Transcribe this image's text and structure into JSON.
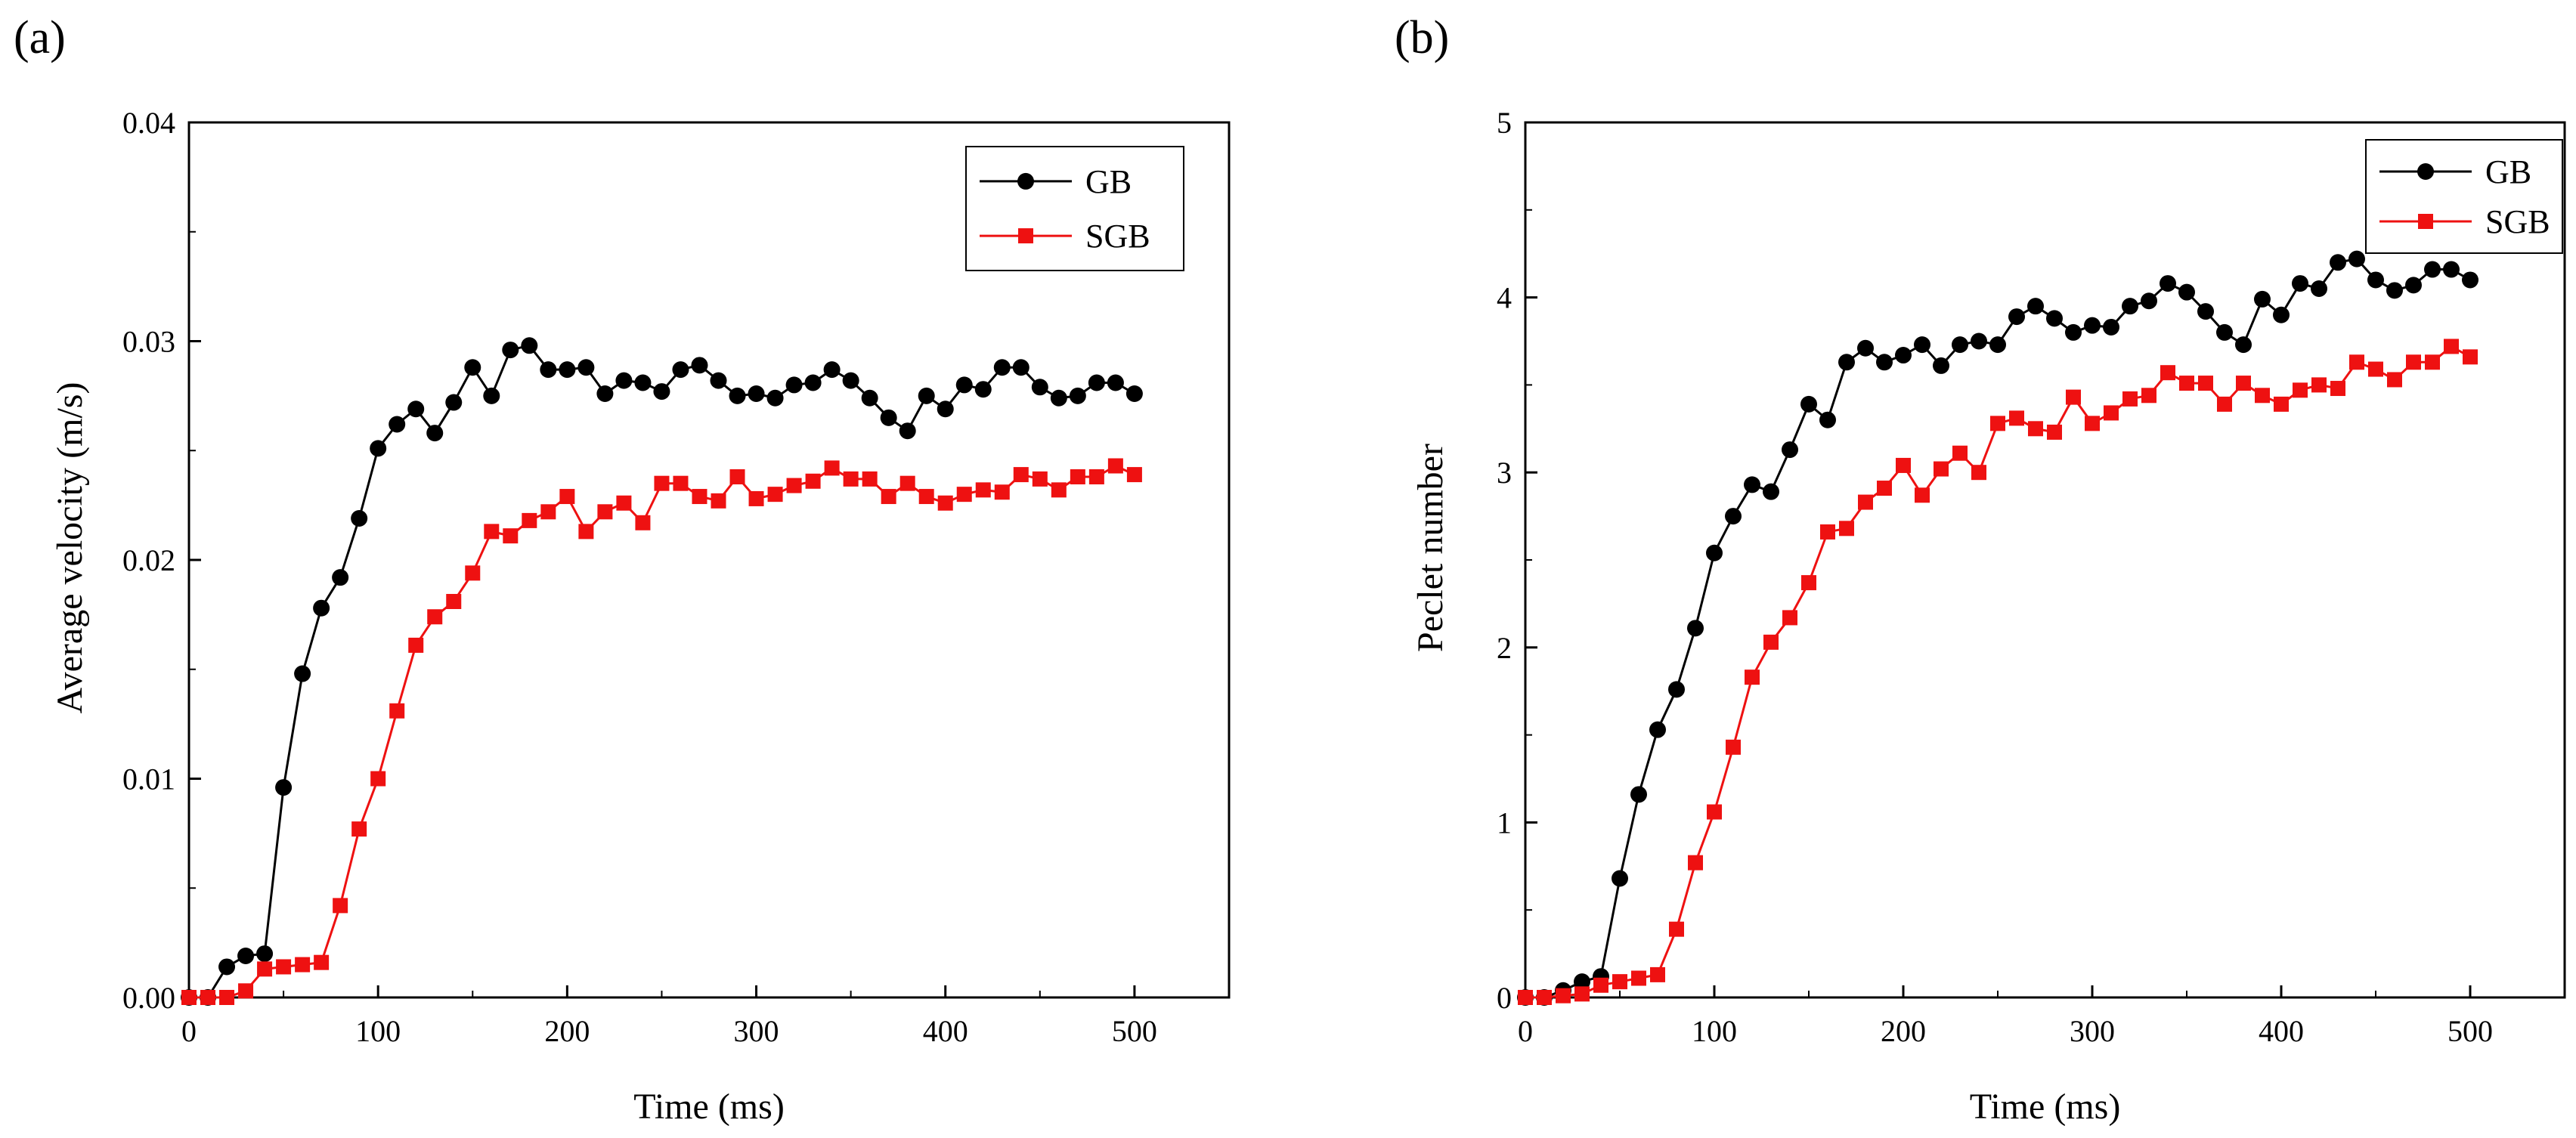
{
  "chart_data": [
    {
      "panel_label": "(a)",
      "type": "line",
      "title": "",
      "xlabel": "Time (ms)",
      "ylabel": "Average velocity (m/s)",
      "xlim": [
        0,
        550
      ],
      "ylim": [
        0,
        0.04
      ],
      "xticks": [
        0,
        100,
        200,
        300,
        400,
        500
      ],
      "xtick_labels": [
        "0",
        "100",
        "200",
        "300",
        "400",
        "500"
      ],
      "yticks": [
        0,
        0.01,
        0.02,
        0.03,
        0.04
      ],
      "ytick_labels": [
        "0.00",
        "0.01",
        "0.02",
        "0.03",
        "0.04"
      ],
      "legend_position": "top-right",
      "x": [
        0,
        10,
        20,
        30,
        40,
        50,
        60,
        70,
        80,
        90,
        100,
        110,
        120,
        130,
        140,
        150,
        160,
        170,
        180,
        190,
        200,
        210,
        220,
        230,
        240,
        250,
        260,
        270,
        280,
        290,
        300,
        310,
        320,
        330,
        340,
        350,
        360,
        370,
        380,
        390,
        400,
        410,
        420,
        430,
        440,
        450,
        460,
        470,
        480,
        490,
        500
      ],
      "series": [
        {
          "name": "GB",
          "color": "#000000",
          "marker": "circle",
          "values": [
            0,
            0,
            0.0014,
            0.0019,
            0.002,
            0.0096,
            0.0148,
            0.0178,
            0.0192,
            0.0219,
            0.0251,
            0.0262,
            0.0269,
            0.0258,
            0.0272,
            0.0288,
            0.0275,
            0.0296,
            0.0298,
            0.0287,
            0.0287,
            0.0288,
            0.0276,
            0.0282,
            0.0281,
            0.0277,
            0.0287,
            0.0289,
            0.0282,
            0.0275,
            0.0276,
            0.0274,
            0.028,
            0.0281,
            0.0287,
            0.0282,
            0.0274,
            0.0265,
            0.0259,
            0.0275,
            0.0269,
            0.028,
            0.0278,
            0.0288,
            0.0288,
            0.0279,
            0.0274,
            0.0275,
            0.0281,
            0.0281,
            0.0276
          ]
        },
        {
          "name": "SGB",
          "color": "#ee1111",
          "marker": "square",
          "values": [
            0,
            0,
            0,
            0.0003,
            0.0013,
            0.0014,
            0.0015,
            0.0016,
            0.0042,
            0.0077,
            0.01,
            0.0131,
            0.0161,
            0.0174,
            0.0181,
            0.0194,
            0.0213,
            0.0211,
            0.0218,
            0.0222,
            0.0229,
            0.0213,
            0.0222,
            0.0226,
            0.0217,
            0.0235,
            0.0235,
            0.0229,
            0.0227,
            0.0238,
            0.0228,
            0.023,
            0.0234,
            0.0236,
            0.0242,
            0.0237,
            0.0237,
            0.0229,
            0.0235,
            0.0229,
            0.0226,
            0.023,
            0.0232,
            0.0231,
            0.0239,
            0.0237,
            0.0232,
            0.0238,
            0.0238,
            0.0243,
            0.0239
          ]
        }
      ]
    },
    {
      "panel_label": "(b)",
      "type": "line",
      "title": "",
      "xlabel": "Time (ms)",
      "ylabel": "Peclet number",
      "xlim": [
        0,
        550
      ],
      "ylim": [
        0,
        5
      ],
      "xticks": [
        0,
        100,
        200,
        300,
        400,
        500
      ],
      "xtick_labels": [
        "0",
        "100",
        "200",
        "300",
        "400",
        "500"
      ],
      "yticks": [
        0,
        1,
        2,
        3,
        4,
        5
      ],
      "ytick_labels": [
        "0",
        "1",
        "2",
        "3",
        "4",
        "5"
      ],
      "legend_position": "top-right",
      "x": [
        0,
        10,
        20,
        30,
        40,
        50,
        60,
        70,
        80,
        90,
        100,
        110,
        120,
        130,
        140,
        150,
        160,
        170,
        180,
        190,
        200,
        210,
        220,
        230,
        240,
        250,
        260,
        270,
        280,
        290,
        300,
        310,
        320,
        330,
        340,
        350,
        360,
        370,
        380,
        390,
        400,
        410,
        420,
        430,
        440,
        450,
        460,
        470,
        480,
        490,
        500
      ],
      "series": [
        {
          "name": "GB",
          "color": "#000000",
          "marker": "circle",
          "values": [
            0,
            0,
            0.04,
            0.09,
            0.12,
            0.68,
            1.16,
            1.53,
            1.76,
            2.11,
            2.54,
            2.75,
            2.93,
            2.89,
            3.13,
            3.39,
            3.3,
            3.63,
            3.71,
            3.63,
            3.67,
            3.73,
            3.61,
            3.73,
            3.75,
            3.73,
            3.89,
            3.95,
            3.88,
            3.8,
            3.84,
            3.83,
            3.95,
            3.98,
            4.08,
            4.03,
            3.92,
            3.8,
            3.73,
            3.99,
            3.9,
            4.08,
            4.05,
            4.2,
            4.22,
            4.1,
            4.04,
            4.07,
            4.16,
            4.16,
            4.1
          ]
        },
        {
          "name": "SGB",
          "color": "#ee1111",
          "marker": "square",
          "values": [
            0,
            0,
            0.01,
            0.02,
            0.07,
            0.09,
            0.11,
            0.13,
            0.39,
            0.77,
            1.06,
            1.43,
            1.83,
            2.03,
            2.17,
            2.37,
            2.66,
            2.68,
            2.83,
            2.91,
            3.04,
            2.87,
            3.02,
            3.11,
            3.0,
            3.28,
            3.31,
            3.25,
            3.23,
            3.43,
            3.28,
            3.34,
            3.42,
            3.44,
            3.57,
            3.51,
            3.51,
            3.39,
            3.51,
            3.44,
            3.39,
            3.47,
            3.5,
            3.48,
            3.63,
            3.59,
            3.53,
            3.63,
            3.63,
            3.72,
            3.66
          ]
        }
      ]
    }
  ]
}
